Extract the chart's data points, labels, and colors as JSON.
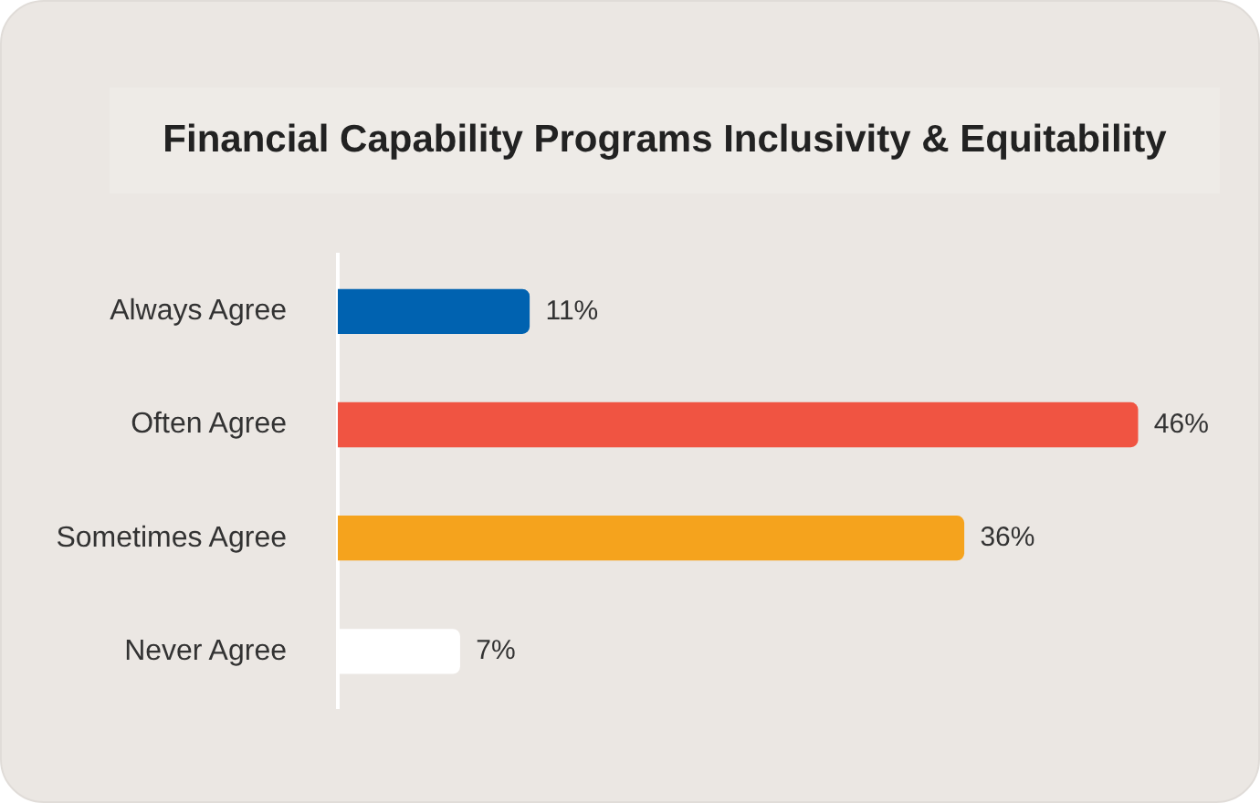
{
  "chart_data": {
    "type": "bar",
    "orientation": "horizontal",
    "title": "Financial Capability Programs Inclusivity & Equitability",
    "categories": [
      "Always Agree",
      "Often Agree",
      "Sometimes Agree",
      "Never Agree"
    ],
    "values": [
      11,
      46,
      36,
      7
    ],
    "colors": [
      "#0062b0",
      "#f05442",
      "#f5a31d",
      "#ffffff"
    ],
    "value_labels": [
      "11%",
      "46%",
      "36%",
      "7%"
    ],
    "legend": false,
    "tick_labels": "y"
  }
}
